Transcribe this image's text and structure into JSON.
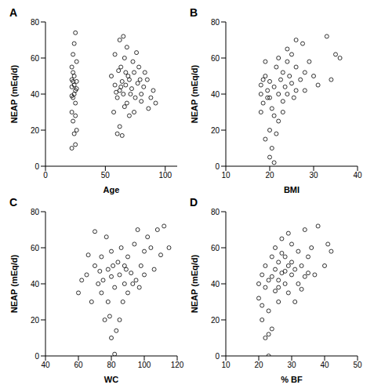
{
  "chart_data": [
    {
      "type": "scatter",
      "title": "A",
      "x_label": "Age",
      "y_label": "NEAP (mEq/d)",
      "color": "#000000",
      "marker": "circle",
      "xlim": [
        0,
        110
      ],
      "xticks": [
        0,
        50,
        100
      ],
      "ylim": [
        0,
        80
      ],
      "yticks": [
        0,
        20,
        40,
        60,
        80
      ],
      "x": [
        22,
        23,
        24,
        25,
        22,
        23,
        25,
        24,
        22,
        26,
        23,
        24,
        25,
        22,
        26,
        23,
        24,
        25,
        22,
        26,
        24,
        23,
        25,
        22,
        26,
        55,
        58,
        60,
        62,
        63,
        64,
        65,
        66,
        67,
        68,
        70,
        72,
        74,
        75,
        77,
        78,
        80,
        82,
        85,
        88,
        90,
        62,
        65,
        68,
        60,
        62,
        64,
        70,
        57,
        73,
        76,
        66,
        69,
        71,
        63,
        67,
        59,
        61,
        80,
        83,
        86,
        92,
        58,
        74,
        79
      ],
      "values": [
        44,
        38,
        50,
        42,
        30,
        62,
        74,
        68,
        55,
        47,
        25,
        18,
        12,
        10,
        20,
        47,
        40,
        35,
        48,
        58,
        45,
        52,
        28,
        39,
        43,
        50,
        45,
        38,
        42,
        55,
        47,
        40,
        60,
        45,
        35,
        48,
        43,
        52,
        38,
        46,
        55,
        40,
        44,
        48,
        38,
        42,
        70,
        72,
        66,
        18,
        22,
        17,
        28,
        30,
        58,
        63,
        33,
        50,
        40,
        44,
        52,
        41,
        53,
        36,
        52,
        32,
        35,
        62,
        30,
        48
      ]
    },
    {
      "type": "scatter",
      "title": "B",
      "x_label": "BMI",
      "y_label": "NEAP (mEq/d)",
      "color": "#000000",
      "marker": "circle",
      "xlim": [
        10,
        40
      ],
      "xticks": [
        10,
        20,
        30,
        40
      ],
      "ylim": [
        0,
        80
      ],
      "yticks": [
        0,
        20,
        40,
        60,
        80
      ],
      "x": [
        18,
        18,
        18.5,
        18,
        19,
        19,
        19.5,
        20,
        20,
        20,
        20.5,
        21,
        21,
        21.5,
        21,
        22,
        22,
        22.5,
        23,
        23,
        23.5,
        24,
        24,
        24.5,
        25,
        25,
        25.5,
        26,
        26,
        27,
        27.5,
        28,
        28,
        29,
        30,
        31,
        33,
        35,
        36,
        34,
        19,
        20,
        21.5,
        22,
        18.5,
        19.5,
        20.5,
        23,
        24,
        26
      ],
      "values": [
        40,
        45,
        35,
        30,
        50,
        58,
        42,
        38,
        47,
        20,
        10,
        2,
        44,
        55,
        28,
        40,
        60,
        48,
        36,
        52,
        44,
        58,
        40,
        50,
        62,
        46,
        38,
        55,
        70,
        48,
        68,
        42,
        52,
        58,
        50,
        45,
        72,
        62,
        60,
        48,
        15,
        5,
        18,
        25,
        48,
        38,
        32,
        30,
        65,
        42
      ]
    },
    {
      "type": "scatter",
      "title": "C",
      "x_label": "WC",
      "y_label": "NEAP (mEq/d)",
      "color": "#000000",
      "marker": "circle",
      "xlim": [
        40,
        120
      ],
      "xticks": [
        40,
        60,
        80,
        100,
        120
      ],
      "ylim": [
        0,
        80
      ],
      "yticks": [
        0,
        20,
        40,
        60,
        80
      ],
      "x": [
        60,
        65,
        68,
        70,
        70,
        72,
        74,
        75,
        76,
        78,
        78,
        80,
        80,
        80,
        82,
        82,
        84,
        85,
        85,
        86,
        88,
        88,
        90,
        90,
        92,
        94,
        95,
        96,
        98,
        100,
        100,
        102,
        104,
        106,
        108,
        110,
        115,
        112,
        62,
        66,
        73,
        77,
        79,
        83,
        87,
        89,
        93,
        97,
        74,
        81
      ],
      "values": [
        35,
        45,
        30,
        50,
        69,
        40,
        55,
        42,
        20,
        48,
        30,
        58,
        44,
        10,
        1,
        38,
        52,
        45,
        20,
        60,
        40,
        50,
        55,
        35,
        46,
        62,
        42,
        70,
        50,
        45,
        58,
        66,
        60,
        48,
        70,
        56,
        60,
        72,
        42,
        56,
        47,
        66,
        22,
        14,
        30,
        48,
        40,
        38,
        35,
        50
      ]
    },
    {
      "type": "scatter",
      "title": "D",
      "x_label": "% BF",
      "y_label": "NEAP (mEq/d)",
      "color": "#000000",
      "marker": "circle",
      "xlim": [
        10,
        50
      ],
      "xticks": [
        10,
        20,
        30,
        40,
        50
      ],
      "ylim": [
        0,
        80
      ],
      "yticks": [
        0,
        20,
        40,
        60,
        80
      ],
      "x": [
        20,
        20,
        21,
        21,
        22,
        22,
        22,
        23,
        23,
        23,
        24,
        24,
        25,
        25,
        25,
        26,
        26,
        27,
        27,
        28,
        28,
        29,
        29,
        30,
        30,
        31,
        32,
        32,
        33,
        34,
        34,
        35,
        36,
        38,
        40,
        41,
        42,
        37,
        31,
        26,
        24,
        23,
        21,
        27,
        29,
        33,
        30,
        26,
        35,
        28
      ],
      "values": [
        40,
        32,
        45,
        20,
        50,
        10,
        38,
        42,
        0,
        25,
        55,
        44,
        48,
        36,
        60,
        42,
        52,
        46,
        65,
        40,
        55,
        50,
        35,
        45,
        62,
        48,
        58,
        40,
        50,
        44,
        70,
        55,
        60,
        72,
        50,
        62,
        58,
        45,
        30,
        30,
        15,
        12,
        28,
        57,
        68,
        37,
        52,
        38,
        46,
        47
      ]
    }
  ]
}
